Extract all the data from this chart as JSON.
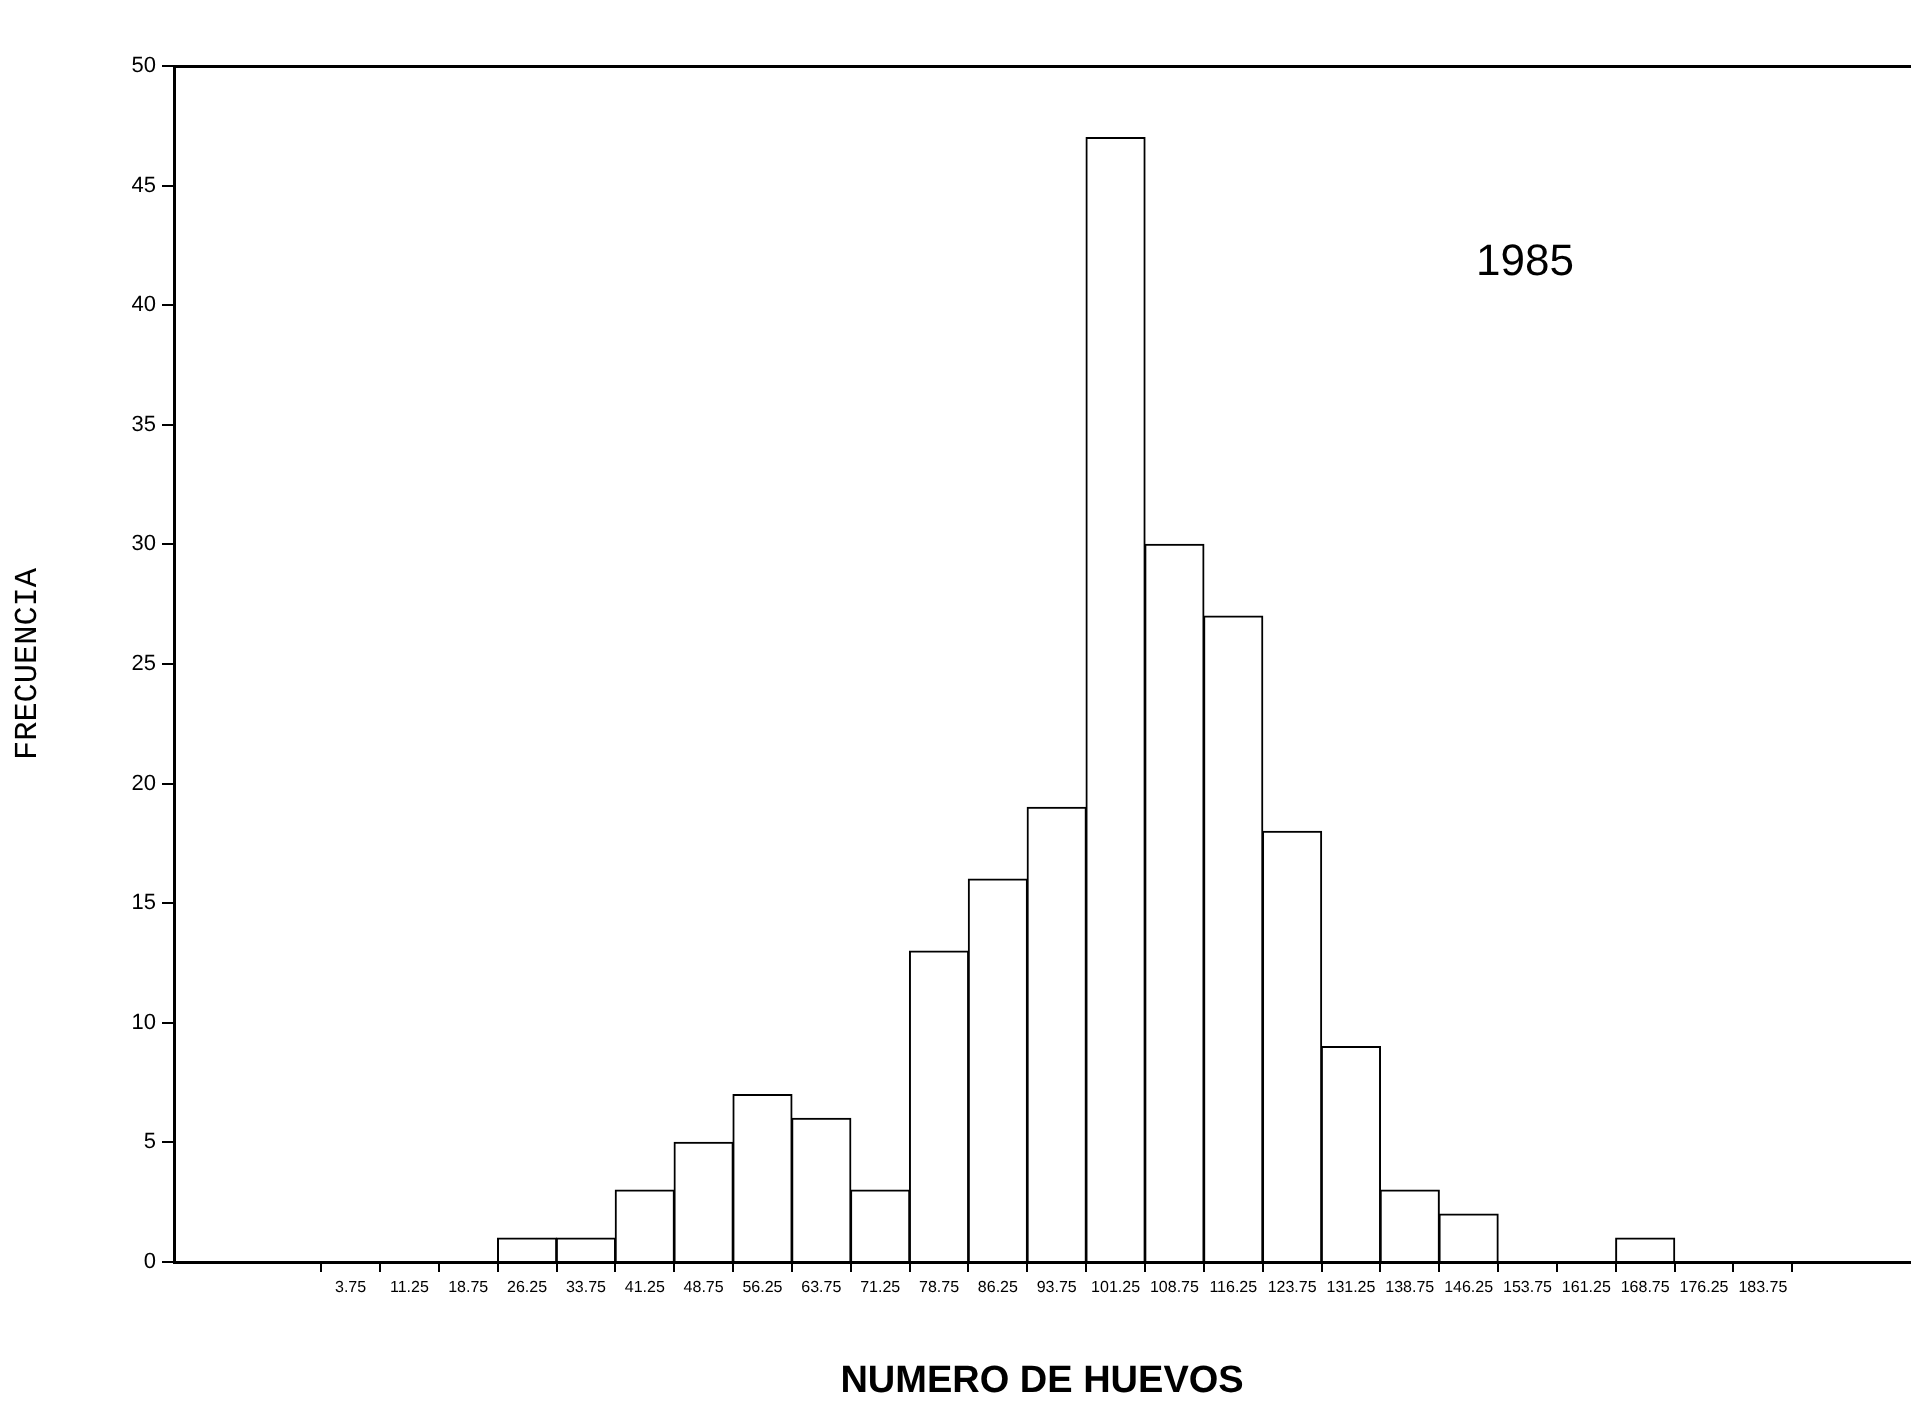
{
  "chart_data": {
    "type": "histogram",
    "xlabel": "NUMERO DE HUEVOS",
    "ylabel": "FRECUENCIA",
    "annotations": [
      "1985"
    ],
    "bins": [
      22.5,
      30,
      37.5,
      45,
      52.5,
      60,
      67.5,
      75,
      82.5,
      90,
      97.5,
      105,
      112.5,
      120,
      127.5,
      135,
      142.5,
      150,
      157.5,
      165,
      172.5
    ],
    "values": [
      1,
      1,
      3,
      5,
      7,
      6,
      3,
      13,
      16,
      19,
      47,
      30,
      27,
      18,
      9,
      3,
      2,
      0,
      0,
      1
    ],
    "color": "#ffffff",
    "xlim": [
      -18.75,
      202.5
    ],
    "xticks": [
      3.75,
      11.25,
      18.75,
      26.25,
      33.75,
      41.25,
      48.75,
      56.25,
      63.75,
      71.25,
      78.75,
      86.25,
      93.75,
      101.25,
      108.75,
      116.25,
      123.75,
      131.25,
      138.75,
      146.25,
      153.75,
      161.25,
      168.75,
      176.25,
      183.75
    ],
    "ylim": [
      0,
      50
    ],
    "yticks": [
      0,
      5,
      10,
      15,
      20,
      25,
      30,
      35,
      40,
      45,
      50
    ],
    "grid": false,
    "legend": false
  }
}
